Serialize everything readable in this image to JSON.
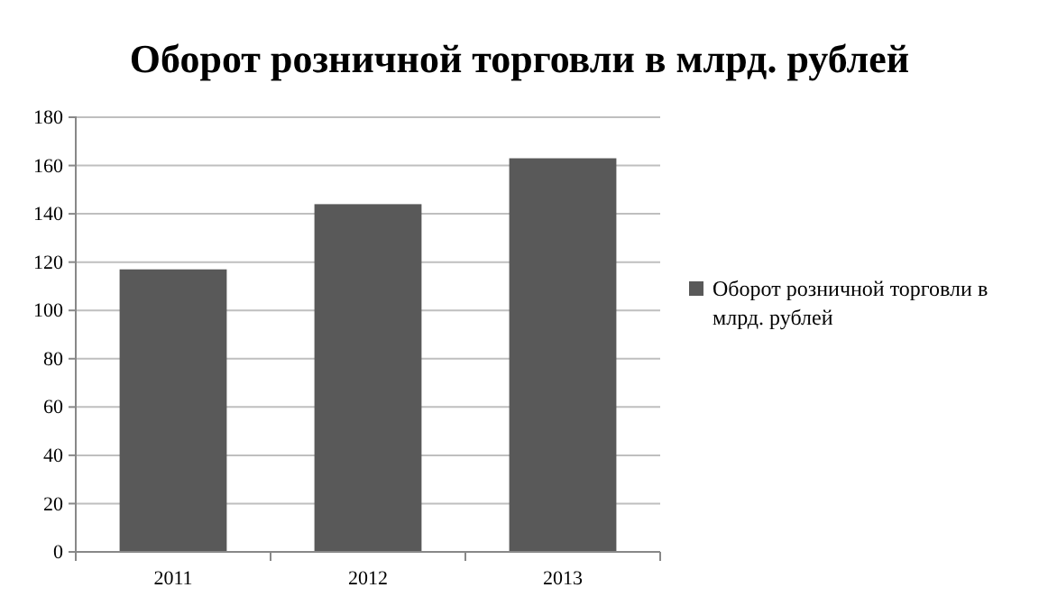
{
  "chart_data": {
    "type": "bar",
    "title": "Оборот розничной торговли в млрд. рублей",
    "categories": [
      "2011",
      "2012",
      "2013"
    ],
    "series": [
      {
        "name": "Оборот розничной торговли в млрд. рублей",
        "color": "#595959",
        "values": [
          117,
          144,
          163
        ]
      }
    ],
    "ylim": [
      0,
      180
    ],
    "yticks": [
      0,
      20,
      40,
      60,
      80,
      100,
      120,
      140,
      160,
      180
    ],
    "grid": "y",
    "legend": "right"
  }
}
